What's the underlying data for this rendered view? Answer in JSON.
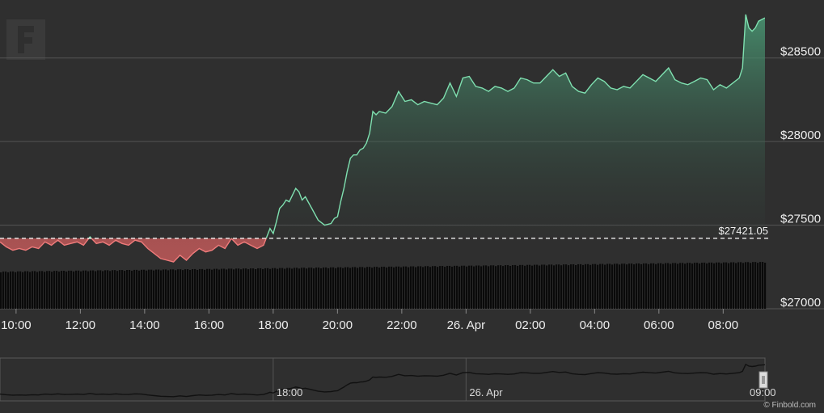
{
  "chart_data": {
    "type": "area",
    "ylim": [
      27000,
      28750
    ],
    "y_ticks": [
      {
        "value": 28500,
        "label": "$28500"
      },
      {
        "value": 28000,
        "label": "$28000"
      },
      {
        "value": 27500,
        "label": "$27500"
      },
      {
        "value": 27000,
        "label": "$27000"
      }
    ],
    "x_ticks": [
      "10:00",
      "12:00",
      "14:00",
      "16:00",
      "18:00",
      "20:00",
      "22:00",
      "26. Apr",
      "02:00",
      "04:00",
      "06:00",
      "08:00"
    ],
    "x_range_hours": [
      9.5,
      33.3
    ],
    "reference_line": {
      "value": 27421.05,
      "label": "$27421.05"
    },
    "colors": {
      "above": "#7fe0b0",
      "below": "#ef7b7b",
      "above_fill": "#4a9a75",
      "below_fill": "#c25a5a"
    },
    "series": [
      {
        "x": [
          9.5,
          9.7,
          9.9,
          10.1,
          10.3,
          10.5,
          10.7,
          10.9,
          11.1,
          11.3,
          11.5,
          11.7,
          11.9,
          12.1,
          12.3,
          12.5,
          12.7,
          12.9,
          13.1,
          13.3,
          13.5,
          13.7,
          13.9,
          14.1,
          14.3,
          14.5,
          14.7,
          14.9,
          15.1,
          15.3,
          15.5,
          15.7,
          15.9,
          16.1,
          16.3,
          16.5,
          16.7,
          16.9,
          17.1,
          17.3,
          17.5,
          17.7,
          17.8,
          17.9,
          18.0,
          18.1,
          18.2,
          18.3,
          18.4,
          18.5,
          18.6,
          18.7,
          18.8,
          18.9,
          19.0,
          19.2,
          19.4,
          19.6,
          19.8,
          19.9,
          20.0,
          20.1,
          20.2,
          20.3,
          20.4,
          20.5,
          20.6,
          20.7,
          20.8,
          20.9,
          21.0,
          21.1,
          21.2,
          21.3,
          21.5,
          21.7,
          21.9,
          22.1,
          22.3,
          22.5,
          22.7,
          22.9,
          23.1,
          23.3,
          23.5,
          23.7,
          23.9,
          24.1,
          24.3,
          24.5,
          24.7,
          24.9,
          25.1,
          25.3,
          25.5,
          25.7,
          25.9,
          26.1,
          26.3,
          26.5,
          26.7,
          26.9,
          27.1,
          27.3,
          27.5,
          27.7,
          27.9,
          28.1,
          28.3,
          28.5,
          28.7,
          28.9,
          29.1,
          29.3,
          29.5,
          29.7,
          29.9,
          30.1,
          30.3,
          30.5,
          30.7,
          30.9,
          31.1,
          31.3,
          31.5,
          31.7,
          31.9,
          32.1,
          32.3,
          32.5,
          32.6,
          32.7,
          32.8,
          32.9,
          33.0,
          33.1,
          33.3
        ],
        "y": [
          27400,
          27370,
          27350,
          27360,
          27350,
          27370,
          27360,
          27400,
          27380,
          27410,
          27380,
          27390,
          27400,
          27380,
          27430,
          27390,
          27400,
          27380,
          27410,
          27390,
          27380,
          27410,
          27400,
          27360,
          27330,
          27300,
          27290,
          27280,
          27320,
          27290,
          27330,
          27360,
          27340,
          27350,
          27380,
          27360,
          27420,
          27380,
          27400,
          27380,
          27360,
          27380,
          27430,
          27480,
          27450,
          27520,
          27600,
          27620,
          27650,
          27640,
          27680,
          27720,
          27700,
          27650,
          27670,
          27600,
          27530,
          27500,
          27510,
          27540,
          27550,
          27640,
          27720,
          27820,
          27900,
          27920,
          27920,
          27950,
          27960,
          27990,
          28050,
          28180,
          28160,
          28180,
          28170,
          28210,
          28300,
          28240,
          28250,
          28220,
          28240,
          28230,
          28220,
          28260,
          28350,
          28270,
          28380,
          28390,
          28330,
          28320,
          28300,
          28330,
          28320,
          28300,
          28320,
          28380,
          28370,
          28350,
          28350,
          28390,
          28430,
          28390,
          28410,
          28330,
          28300,
          28290,
          28340,
          28380,
          28360,
          28320,
          28310,
          28330,
          28320,
          28360,
          28400,
          28380,
          28360,
          28400,
          28440,
          28370,
          28350,
          28340,
          28360,
          28380,
          28370,
          28310,
          28340,
          28320,
          28350,
          28380,
          28440,
          28760,
          28680,
          28660,
          28680,
          28720,
          28740
        ]
      }
    ],
    "navigator": {
      "labels": [
        "18:00",
        "26. Apr",
        "09:00"
      ]
    },
    "credit": "© Finbold.com"
  }
}
